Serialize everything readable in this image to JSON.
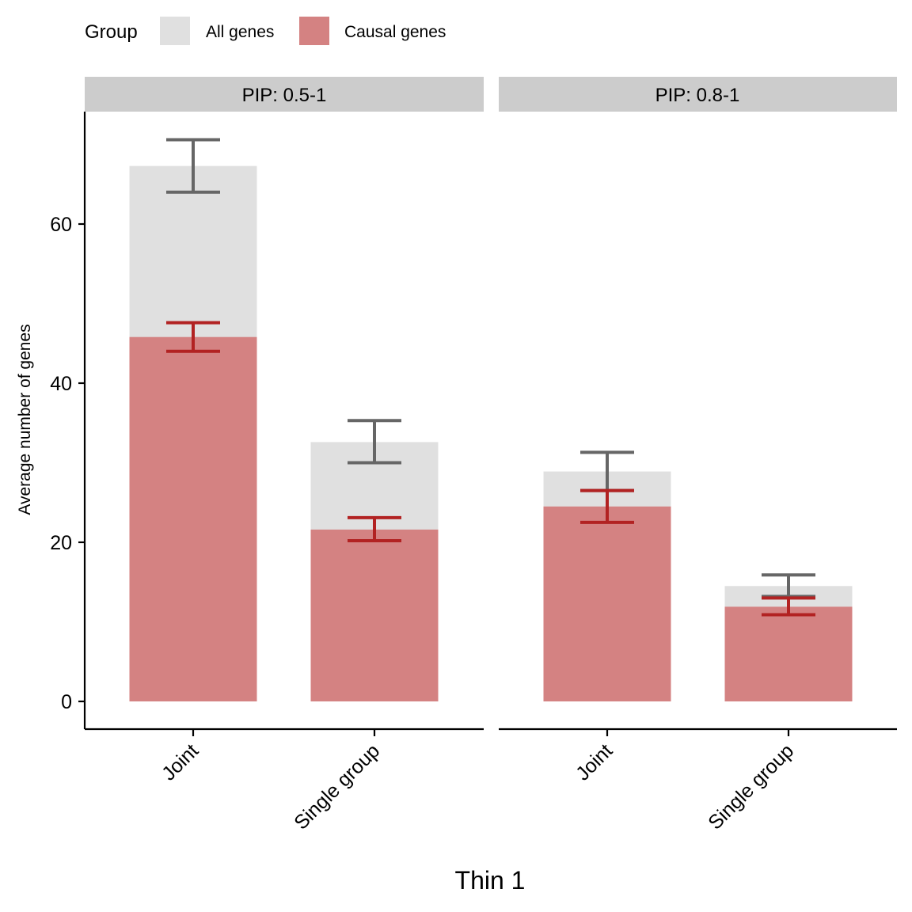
{
  "chart_data": {
    "type": "bar",
    "xlabel": "Thin 1",
    "ylabel": "Average number of genes",
    "ylim": [
      -3.5,
      74
    ],
    "yticks": [
      0,
      20,
      40,
      60
    ],
    "grid": false,
    "legend": {
      "title": "Group",
      "position": "top-left"
    },
    "categories": [
      "Joint",
      "Single group"
    ],
    "series": [
      {
        "name": "All genes",
        "color": "#e0e0e0",
        "error_color": "#666666"
      },
      {
        "name": "Causal genes",
        "color": "#d48282",
        "error_color": "#b22222"
      }
    ],
    "panels": [
      {
        "label": "PIP: 0.5-1",
        "bars": [
          {
            "category": "Joint",
            "all_genes": {
              "value": 67.3,
              "err_low": 64.0,
              "err_high": 70.6
            },
            "causal_genes": {
              "value": 45.8,
              "err_low": 44.0,
              "err_high": 47.6
            }
          },
          {
            "category": "Single group",
            "all_genes": {
              "value": 32.6,
              "err_low": 30.0,
              "err_high": 35.3
            },
            "causal_genes": {
              "value": 21.6,
              "err_low": 20.2,
              "err_high": 23.1
            }
          }
        ]
      },
      {
        "label": "PIP: 0.8-1",
        "bars": [
          {
            "category": "Joint",
            "all_genes": {
              "value": 28.9,
              "err_low": 26.5,
              "err_high": 31.3
            },
            "causal_genes": {
              "value": 24.5,
              "err_low": 22.5,
              "err_high": 26.5
            }
          },
          {
            "category": "Single group",
            "all_genes": {
              "value": 14.5,
              "err_low": 13.2,
              "err_high": 15.9
            },
            "causal_genes": {
              "value": 11.9,
              "err_low": 10.9,
              "err_high": 13.0
            }
          }
        ]
      }
    ]
  }
}
